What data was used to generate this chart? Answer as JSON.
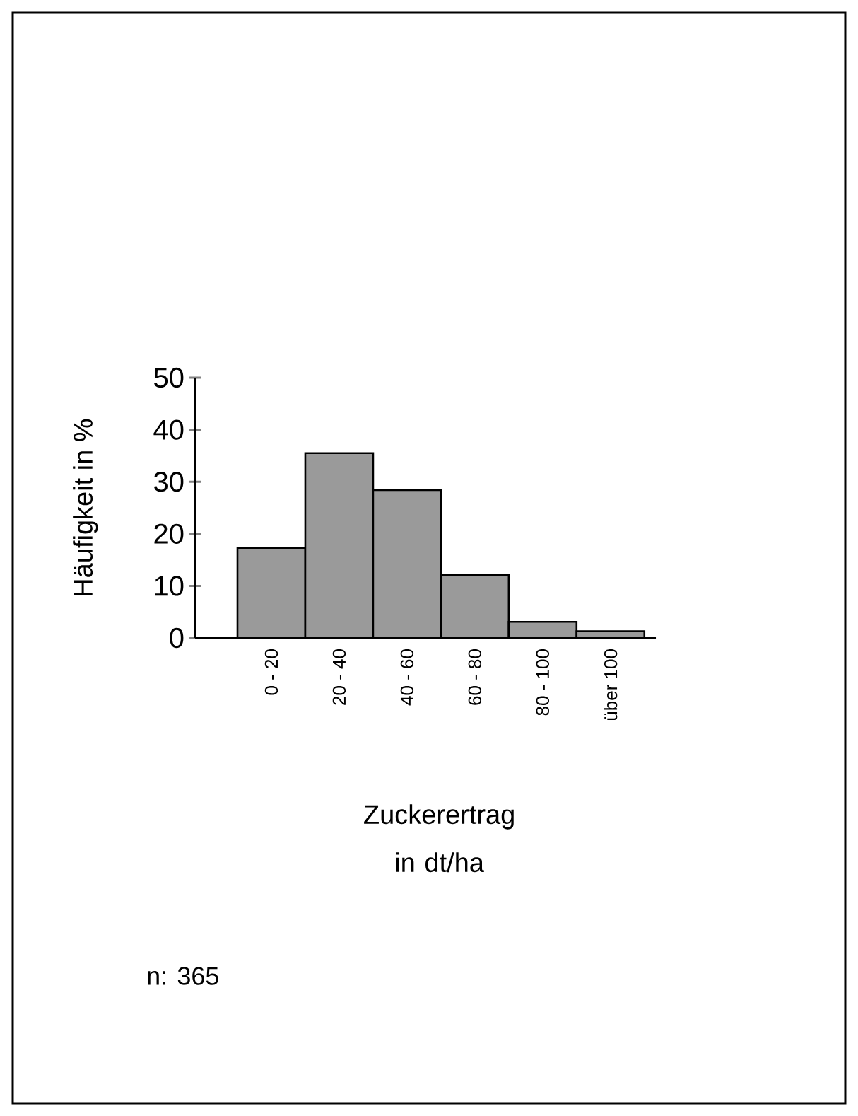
{
  "chart_data": {
    "type": "bar",
    "xlabel": "Zuckerertrag in dt/ha",
    "ylabel": "Häufigkeit in %",
    "categories": [
      "0 - 20",
      "20 - 40",
      "40 - 60",
      "60 - 80",
      "80 - 100",
      "über 100"
    ],
    "values": [
      17.3,
      35.5,
      28.4,
      12.1,
      3.1,
      1.3
    ],
    "color": "#9a9a9a",
    "ylim": [
      0,
      50
    ],
    "yticks": [
      0,
      10,
      20,
      30,
      40,
      50
    ],
    "annotations": [
      "n: 365"
    ]
  }
}
